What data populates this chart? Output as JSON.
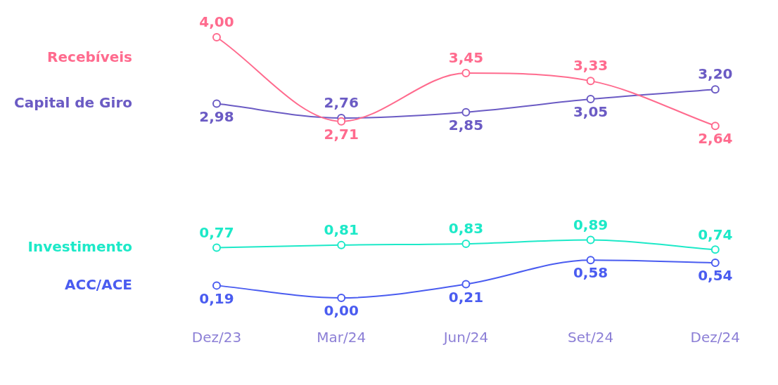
{
  "chart_data": {
    "type": "line",
    "categories": [
      "Dez/23",
      "Mar/24",
      "Jun/24",
      "Set/24",
      "Dez/24"
    ],
    "series": [
      {
        "name": "Recebíveis",
        "color": "#ff6b8e",
        "values": [
          4.0,
          2.71,
          3.45,
          3.33,
          2.64
        ],
        "value_labels": [
          "4,00",
          "2,71",
          "3,45",
          "3,33",
          "2,64"
        ]
      },
      {
        "name": "Capital de Giro",
        "color": "#6b5bc4",
        "values": [
          2.98,
          2.76,
          2.85,
          3.05,
          3.2
        ],
        "value_labels": [
          "2,98",
          "2,76",
          "2,85",
          "3,05",
          "3,20"
        ]
      },
      {
        "name": "Investimento",
        "color": "#1de9c8",
        "values": [
          0.77,
          0.81,
          0.83,
          0.89,
          0.74
        ],
        "value_labels": [
          "0,77",
          "0,81",
          "0,83",
          "0,89",
          "0,74"
        ]
      },
      {
        "name": "ACC/ACE",
        "color": "#4a5cf0",
        "values": [
          0.19,
          0.0,
          0.21,
          0.58,
          0.54
        ],
        "value_labels": [
          "0,19",
          "0,00",
          "0,21",
          "0,58",
          "0,54"
        ]
      }
    ],
    "legend": "left",
    "marker": "circle",
    "grid": false
  }
}
